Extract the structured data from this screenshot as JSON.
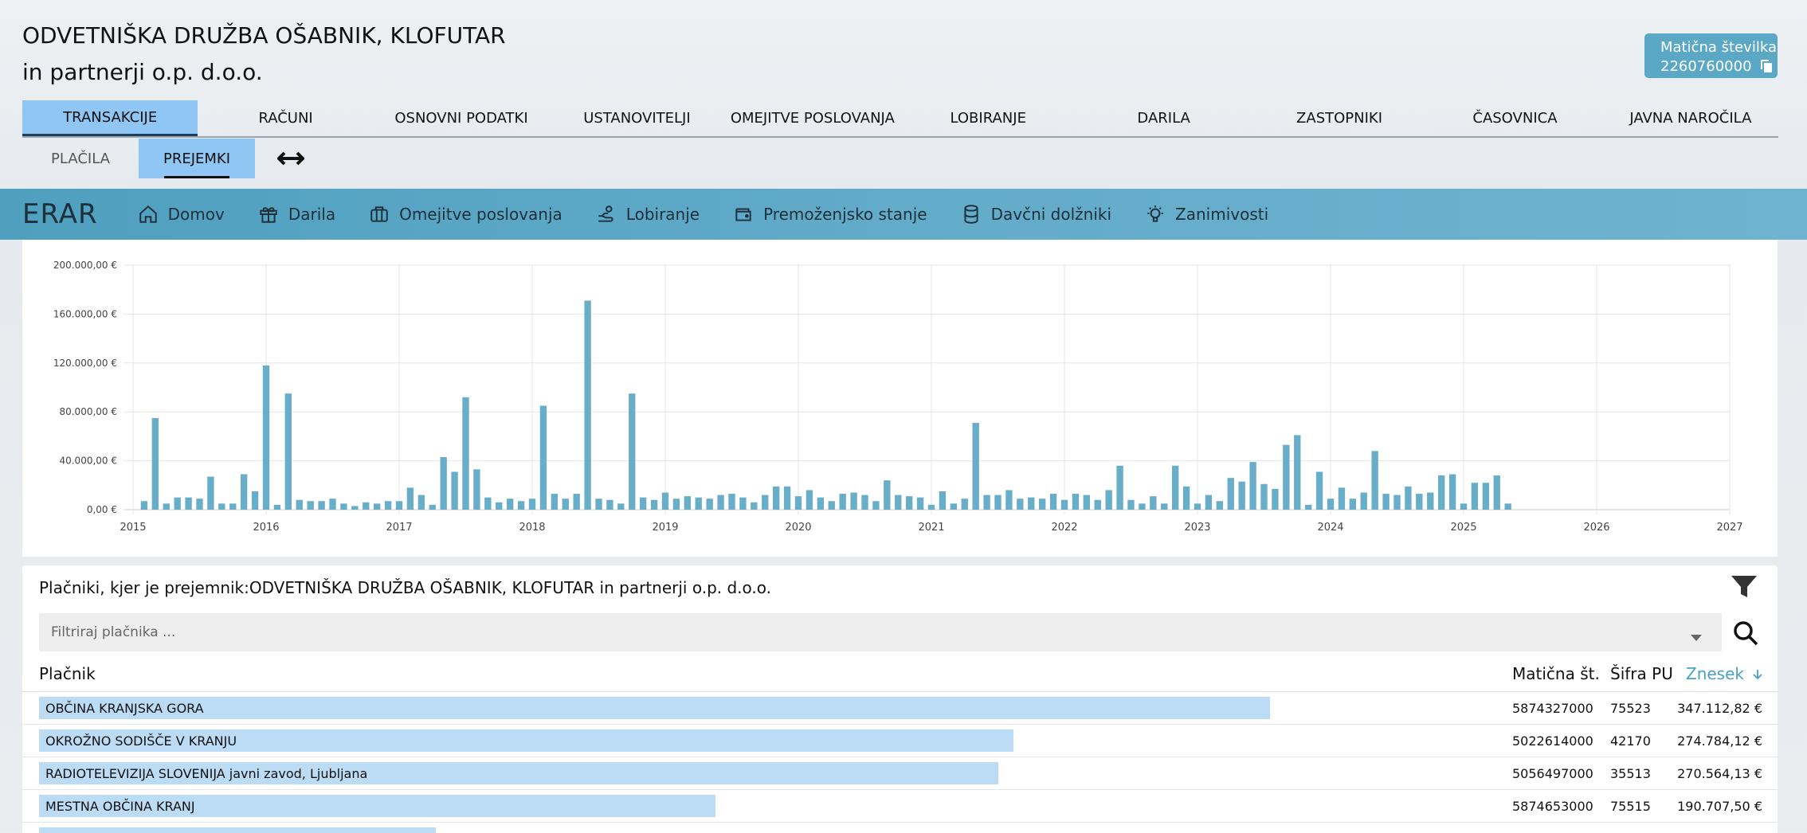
{
  "company": {
    "name": "ODVETNIŠKA DRUŽBA OŠABNIK, KLOFUTAR in partnerji o.p. d.o.o.",
    "reg_label": "Matična številka",
    "reg_number": "2260760000"
  },
  "main_tabs": [
    "TRANSAKCIJE",
    "RAČUNI",
    "OSNOVNI PODATKI",
    "USTANOVITELJI",
    "OMEJITVE POSLOVANJA",
    "LOBIRANJE",
    "DARILA",
    "ZASTOPNIKI",
    "ČASOVNICA",
    "JAVNA NAROČILA"
  ],
  "sub_tabs": [
    "PLAČILA",
    "PREJEMKI"
  ],
  "erar": {
    "logo": "ERAR",
    "items": [
      {
        "label": "Domov",
        "icon": "home-icon"
      },
      {
        "label": "Darila",
        "icon": "gift-icon"
      },
      {
        "label": "Omejitve poslovanja",
        "icon": "briefcase-icon"
      },
      {
        "label": "Lobiranje",
        "icon": "hand-coin-icon"
      },
      {
        "label": "Premoženjsko stanje",
        "icon": "wallet-icon"
      },
      {
        "label": "Davčni dolžniki",
        "icon": "database-icon"
      },
      {
        "label": "Zanimivosti",
        "icon": "bulb-icon"
      }
    ]
  },
  "chart_data": {
    "type": "bar",
    "title": "",
    "xlabel": "",
    "ylabel": "",
    "x_ticks": [
      "2015",
      "2016",
      "2017",
      "2018",
      "2019",
      "2020",
      "2021",
      "2022",
      "2023",
      "2024",
      "2025",
      "2026",
      "2027"
    ],
    "y_ticks": [
      "0,00 €",
      "40.000,00 €",
      "80.000,00 €",
      "120.000,00 €",
      "160.000,00 €",
      "200.000,00 €"
    ],
    "xlim": [
      "2015-01",
      "2027-01"
    ],
    "ylim": [
      0,
      200000
    ],
    "grid": true,
    "color": "#69aec9",
    "months": [
      "2015-02",
      "2015-03",
      "2015-04",
      "2015-05",
      "2015-06",
      "2015-07",
      "2015-08",
      "2015-09",
      "2015-10",
      "2015-11",
      "2015-12",
      "2016-01",
      "2016-02",
      "2016-03",
      "2016-04",
      "2016-05",
      "2016-06",
      "2016-07",
      "2016-08",
      "2016-09",
      "2016-10",
      "2016-11",
      "2016-12",
      "2017-01",
      "2017-02",
      "2017-03",
      "2017-04",
      "2017-05",
      "2017-06",
      "2017-07",
      "2017-08",
      "2017-09",
      "2017-10",
      "2017-11",
      "2017-12",
      "2018-01",
      "2018-02",
      "2018-03",
      "2018-04",
      "2018-05",
      "2018-06",
      "2018-07",
      "2018-08",
      "2018-09",
      "2018-10",
      "2018-11",
      "2018-12",
      "2019-01",
      "2019-02",
      "2019-03",
      "2019-04",
      "2019-05",
      "2019-06",
      "2019-07",
      "2019-08",
      "2019-09",
      "2019-10",
      "2019-11",
      "2019-12",
      "2020-01",
      "2020-02",
      "2020-03",
      "2020-04",
      "2020-05",
      "2020-06",
      "2020-07",
      "2020-08",
      "2020-09",
      "2020-10",
      "2020-11",
      "2020-12",
      "2021-01",
      "2021-02",
      "2021-03",
      "2021-04",
      "2021-05",
      "2021-06",
      "2021-07",
      "2021-08",
      "2021-09",
      "2021-10",
      "2021-11",
      "2021-12",
      "2022-01",
      "2022-02",
      "2022-03",
      "2022-04",
      "2022-05",
      "2022-06",
      "2022-07",
      "2022-08",
      "2022-09",
      "2022-10",
      "2022-11",
      "2022-12",
      "2023-01",
      "2023-02",
      "2023-03",
      "2023-04",
      "2023-05",
      "2023-06",
      "2023-07",
      "2023-08",
      "2023-09",
      "2023-10",
      "2023-11",
      "2023-12",
      "2024-01",
      "2024-02",
      "2024-03",
      "2024-04",
      "2024-05",
      "2024-06",
      "2024-07",
      "2024-08",
      "2024-09",
      "2024-10",
      "2024-11",
      "2024-12",
      "2025-01",
      "2025-02",
      "2025-03",
      "2025-04",
      "2025-05"
    ],
    "values": [
      7000,
      75000,
      5000,
      10000,
      10000,
      9000,
      27000,
      5000,
      5000,
      29000,
      15000,
      118000,
      4000,
      95000,
      8000,
      7000,
      7000,
      9000,
      5000,
      3000,
      6000,
      5000,
      7000,
      7000,
      18000,
      12000,
      4000,
      43000,
      31000,
      92000,
      33000,
      10000,
      6000,
      9000,
      7000,
      9000,
      85000,
      13000,
      9000,
      13000,
      171000,
      9000,
      8000,
      5000,
      95000,
      10000,
      8000,
      14000,
      9000,
      11000,
      10000,
      9000,
      12000,
      13000,
      10000,
      6000,
      12000,
      19000,
      19000,
      11000,
      16000,
      10000,
      7000,
      13000,
      14000,
      12000,
      7000,
      24000,
      12000,
      11000,
      10000,
      4000,
      15000,
      5000,
      9000,
      71000,
      12000,
      12000,
      16000,
      9000,
      10000,
      9000,
      13000,
      8000,
      13000,
      12000,
      8000,
      16000,
      36000,
      8000,
      5000,
      11000,
      5000,
      36000,
      19000,
      5000,
      12000,
      7000,
      26000,
      23000,
      39000,
      21000,
      17000,
      53000,
      61000,
      4000,
      31000,
      9000,
      18000,
      9000,
      14000,
      48000,
      13000,
      12000,
      19000,
      13000,
      14000,
      28000,
      29000,
      5000,
      22000,
      22000,
      28000,
      5000
    ]
  },
  "table": {
    "heading_prefix": "Plačniki, kjer je prejemnik:",
    "heading_company": "ODVETNIŠKA DRUŽBA OŠABNIK, KLOFUTAR in partnerji o.p. d.o.o.",
    "search_placeholder": "Filtriraj plačnika ...",
    "columns": {
      "payer": "Plačnik",
      "reg": "Matična št.",
      "code": "Šifra PU",
      "amount": "Znesek"
    },
    "rows": [
      {
        "name": "OBČINA KRANJSKA GORA",
        "reg": "5874327000",
        "code": "75523",
        "amount": "347.112,82 €",
        "value": 347112.82
      },
      {
        "name": "OKROŽNO SODIŠČE V KRANJU",
        "reg": "5022614000",
        "code": "42170",
        "amount": "274.784,12 €",
        "value": 274784.12
      },
      {
        "name": "RADIOTELEVIZIJA SLOVENIJA javni zavod, Ljubljana",
        "reg": "5056497000",
        "code": "35513",
        "amount": "270.564,13 €",
        "value": 270564.13
      },
      {
        "name": "MESTNA OBČINA KRANJ",
        "reg": "5874653000",
        "code": "75515",
        "amount": "190.707,50 €",
        "value": 190707.5
      }
    ]
  }
}
